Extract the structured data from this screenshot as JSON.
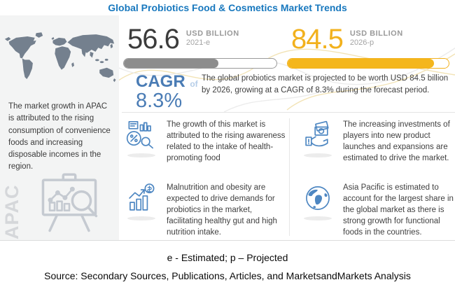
{
  "title": "Global Probiotics Food & Cosmetics Market Trends",
  "left_panel": {
    "description": "The market growth in APAC is attributed to the rising consumption of convenience foods and increasing disposable incomes in the region.",
    "region_label": "APAC",
    "map_icon": "world-map",
    "chart_icon": "chart-easel-magnifier-icon"
  },
  "stats": {
    "current": {
      "value": "56.6",
      "unit": "USD BILLION",
      "period": "2021-e",
      "bar_fill_percent": 62
    },
    "projected": {
      "value": "84.5",
      "unit": "USD BILLION",
      "period": "2026-p",
      "bar_fill_percent": 91
    }
  },
  "cagr": {
    "label": "CAGR",
    "of": "of",
    "value": "8.3%",
    "summary": "The global probiotics market is projected to be worth USD 84.5 billion by 2026, growing at a CAGR of 8.3% during the forecast period."
  },
  "drivers": [
    {
      "icon": "market-analysis-icon",
      "text": "The growth of this market is attributed to the rising awareness related to the intake of health-promoting food"
    },
    {
      "icon": "investment-icon",
      "text": "The increasing investments of players into new product launches and expansions are estimated to drive the market."
    },
    {
      "icon": "growth-chart-icon",
      "text": "Malnutrition and obesity are expected to drive demands for probiotics in the market, facilitating healthy gut and high nutrition intake."
    },
    {
      "icon": "globe-icon",
      "text": "Asia Pacific is estimated to account for the largest share in the global market as there is strong growth for functional foods in the countries."
    }
  ],
  "footer": {
    "legend": "e - Estimated; p – Projected",
    "source": "Source: Secondary Sources, Publications, Articles, and MarketsandMarkets Analysis"
  },
  "colors": {
    "title_blue": "#1878be",
    "steel_blue": "#4a7cb5",
    "accent_yellow": "#f2b11d",
    "bar_gray": "#8d8d8d",
    "map_gray": "#74808e",
    "icon_blue": "#4e87c2"
  },
  "chart_data": {
    "type": "bar",
    "title": "Global Probiotics Food & Cosmetics Market Trends",
    "categories": [
      "2021-e",
      "2026-p"
    ],
    "values": [
      56.6,
      84.5
    ],
    "unit": "USD Billion",
    "cagr_percent": 8.3,
    "notes": "e - Estimated; p – Projected",
    "legend_position": "none",
    "grid": false
  }
}
